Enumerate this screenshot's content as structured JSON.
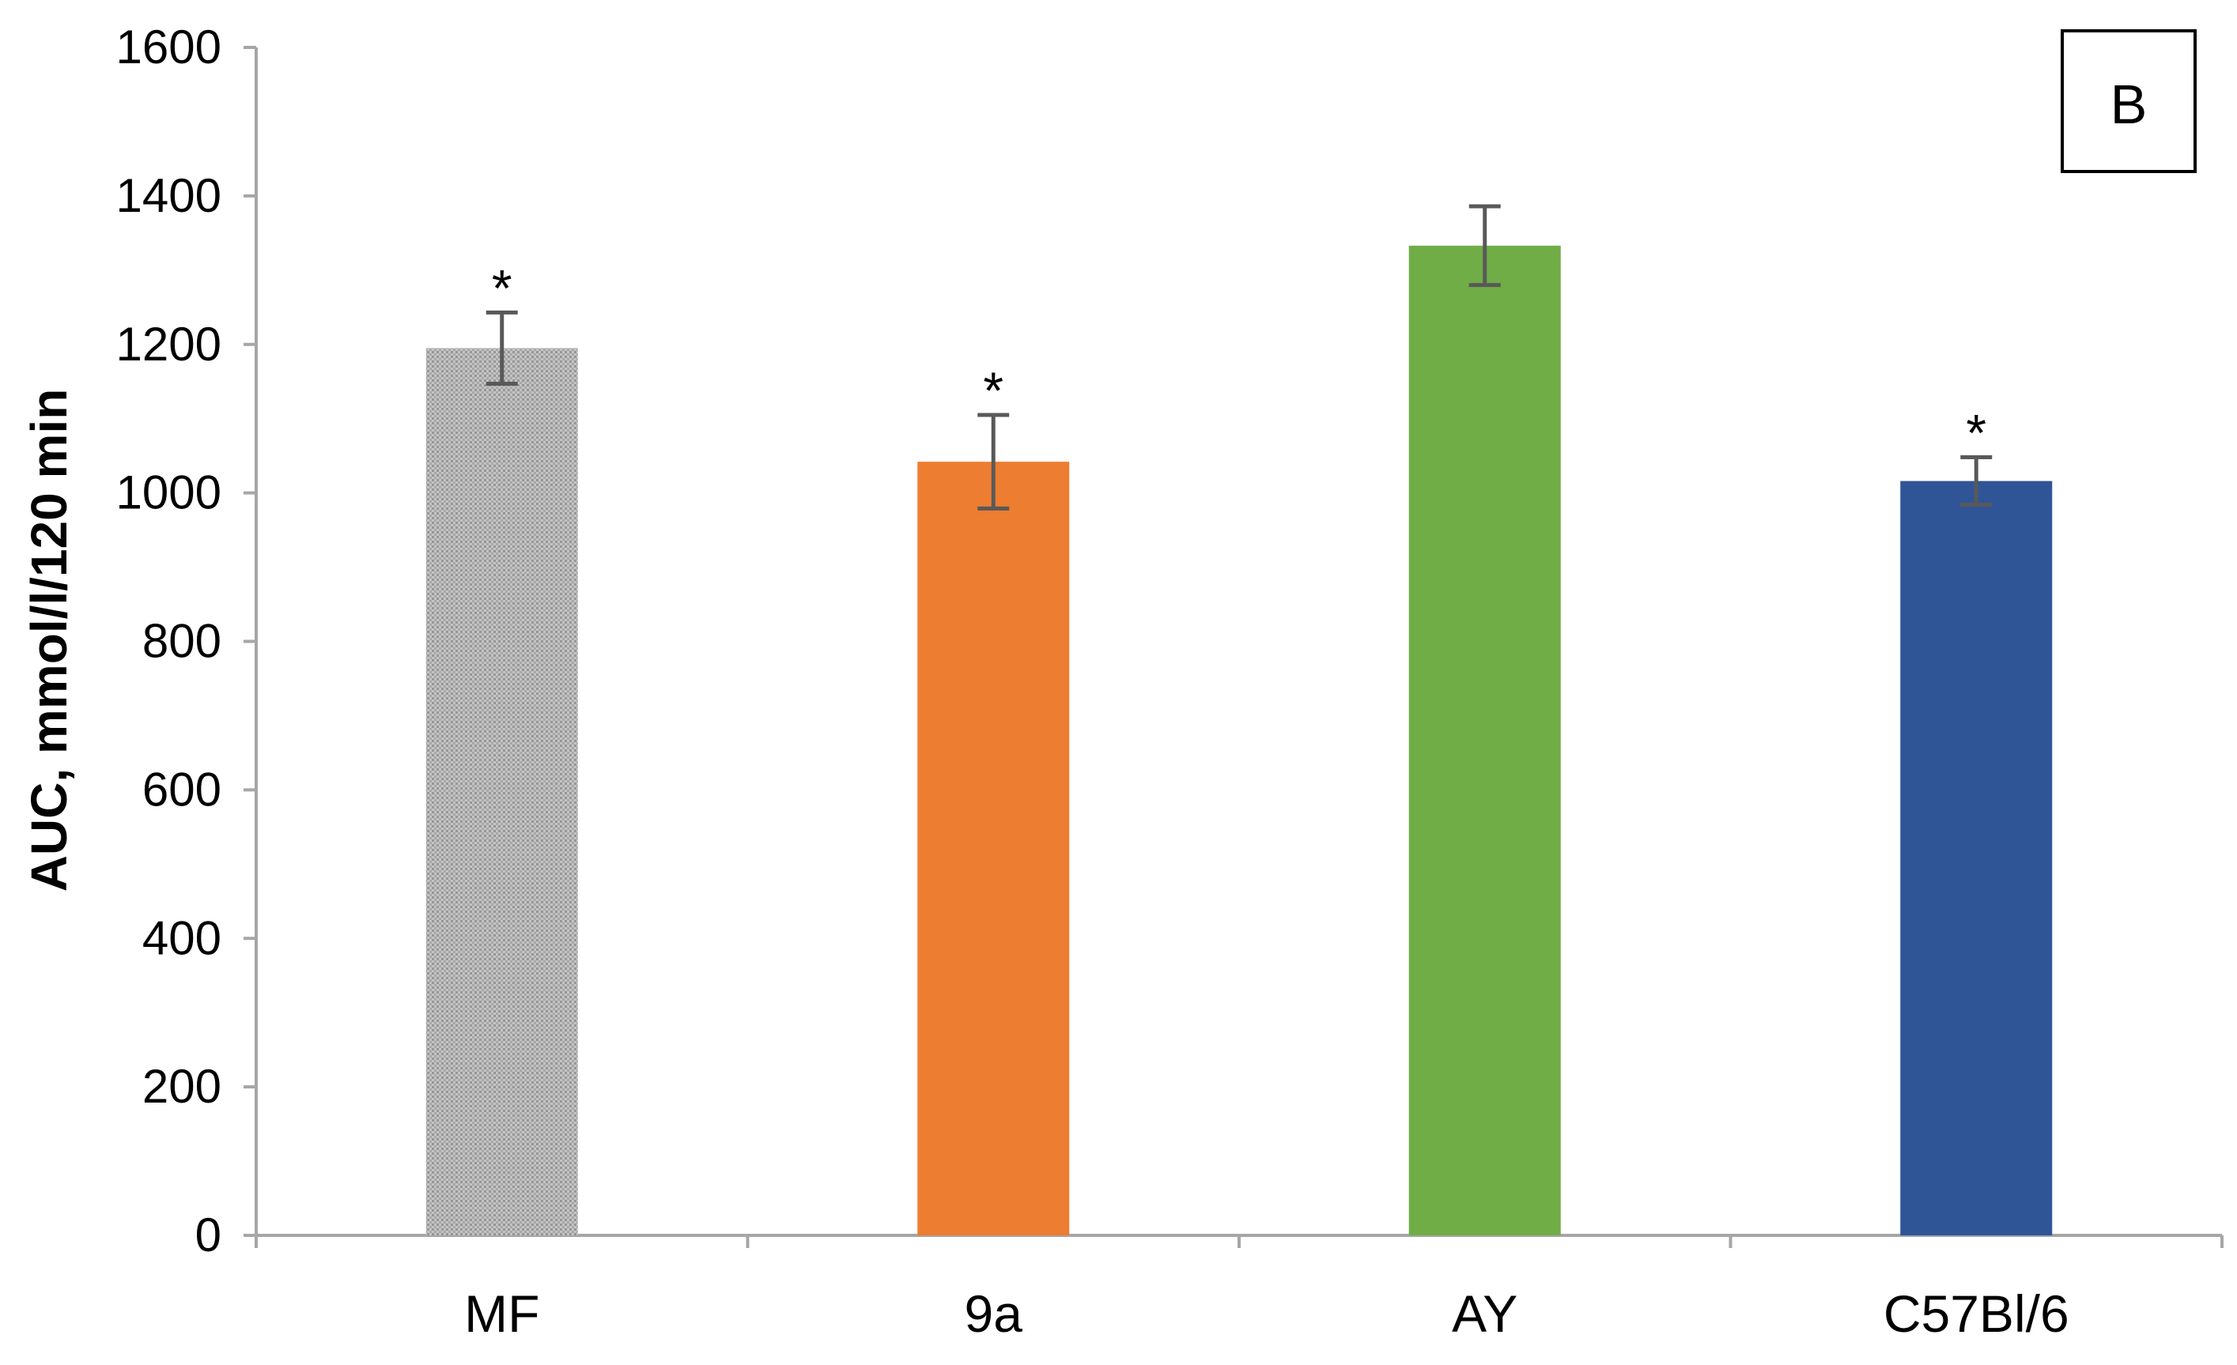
{
  "chart_data": {
    "type": "bar",
    "title": "",
    "panel_label": "B",
    "xlabel": "",
    "ylabel": "AUC, mmol/l/120 min",
    "ylim": [
      0,
      1600
    ],
    "yticks": [
      0,
      200,
      400,
      600,
      800,
      1000,
      1200,
      1400,
      1600
    ],
    "ytick_labels": [
      "0",
      "200",
      "400",
      "600",
      "800",
      "1000",
      "1200",
      "1400",
      "1600"
    ],
    "grid": false,
    "legend": "none",
    "categories": [
      "MF",
      "9a",
      "AY",
      "C57Bl/6"
    ],
    "values": [
      1195,
      1042,
      1333,
      1016
    ],
    "error": [
      48,
      63,
      53,
      32
    ],
    "significance": [
      "*",
      "*",
      "",
      "*"
    ],
    "colors": [
      "#b0b0b0",
      "#ed7d31",
      "#70ad47",
      "#2f5597"
    ],
    "bar_patterns": [
      "dotted",
      "solid",
      "solid",
      "solid"
    ],
    "axis_color": "#a6a6a6",
    "errorbar_color": "#595959"
  }
}
